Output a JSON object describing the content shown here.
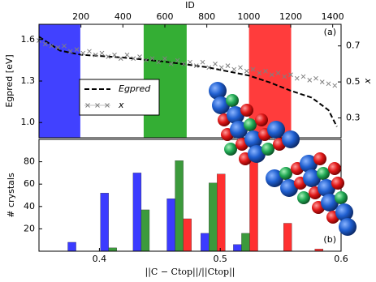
{
  "chart_data": [
    {
      "type": "line",
      "x_label": "ID",
      "y_label": "Egpred [eV]",
      "y2_label": "x",
      "annotation": "(a)",
      "xlim": [
        0,
        1440
      ],
      "xticks": [
        200,
        400,
        600,
        800,
        1000,
        1200,
        1400
      ],
      "ylim": [
        0.89,
        1.71
      ],
      "yticks": [
        {
          "value": 1,
          "label": "1.0"
        },
        1.3,
        1.6
      ],
      "y2lim": [
        0.19,
        0.82
      ],
      "y2ticks": [
        0.3,
        0.5,
        0.7
      ],
      "highlights": [
        {
          "start": 0,
          "end": 197,
          "color": "#2020ff"
        },
        {
          "start": 499,
          "end": 704,
          "color": "#10a010"
        },
        {
          "start": 1001,
          "end": 1202,
          "color": "#ff1a1a"
        }
      ],
      "legend": "center-left",
      "series": [
        {
          "name": "Egpred",
          "color": "#000000",
          "style": "dashed",
          "x": [
            0,
            100,
            200,
            400,
            600,
            800,
            900,
            1000,
            1100,
            1200,
            1300,
            1380,
            1420
          ],
          "values": [
            1.62,
            1.52,
            1.49,
            1.47,
            1.44,
            1.4,
            1.37,
            1.34,
            1.29,
            1.23,
            1.18,
            1.09,
            0.97
          ]
        },
        {
          "name": "x",
          "color": "#808080",
          "style": "marker",
          "axis": "y2",
          "x": [
            0,
            30,
            60,
            90,
            120,
            150,
            180,
            210,
            240,
            270,
            300,
            330,
            360,
            390,
            420,
            450,
            480,
            510,
            540,
            570,
            600,
            630,
            660,
            690,
            720,
            750,
            780,
            810,
            840,
            870,
            900,
            930,
            960,
            990,
            1020,
            1050,
            1080,
            1110,
            1140,
            1170,
            1200,
            1230,
            1260,
            1290,
            1320,
            1350,
            1380,
            1410
          ],
          "values": [
            0.73,
            0.71,
            0.7,
            0.69,
            0.7,
            0.67,
            0.68,
            0.66,
            0.67,
            0.65,
            0.66,
            0.64,
            0.65,
            0.63,
            0.65,
            0.63,
            0.64,
            0.62,
            0.63,
            0.61,
            0.63,
            0.6,
            0.62,
            0.6,
            0.61,
            0.59,
            0.61,
            0.58,
            0.6,
            0.58,
            0.59,
            0.57,
            0.58,
            0.56,
            0.57,
            0.55,
            0.56,
            0.54,
            0.55,
            0.53,
            0.54,
            0.52,
            0.53,
            0.51,
            0.52,
            0.5,
            0.49,
            0.48
          ]
        }
      ]
    },
    {
      "type": "bar",
      "x_label": "||C − Ctop||/||Ctop||",
      "y_label": "# crystals",
      "annotation": "(b)",
      "xlim": [
        0.35,
        0.6
      ],
      "xticks": [
        0.4,
        0.5,
        0.6
      ],
      "ylim": [
        0,
        100
      ],
      "yticks": [
        20,
        40,
        60,
        80
      ],
      "x": [
        0.384,
        0.411,
        0.438,
        0.466,
        0.494,
        0.521,
        0.549,
        0.575
      ],
      "series": [
        {
          "color": "#3b3bff",
          "values": [
            8,
            52,
            70,
            47,
            16,
            6,
            0,
            0
          ]
        },
        {
          "color": "#3c9a3c",
          "values": [
            0,
            3,
            37,
            81,
            61,
            16,
            0,
            0
          ]
        },
        {
          "color": "#ff3030",
          "values": [
            0,
            0,
            0,
            29,
            69,
            90,
            25,
            2
          ]
        }
      ]
    }
  ]
}
